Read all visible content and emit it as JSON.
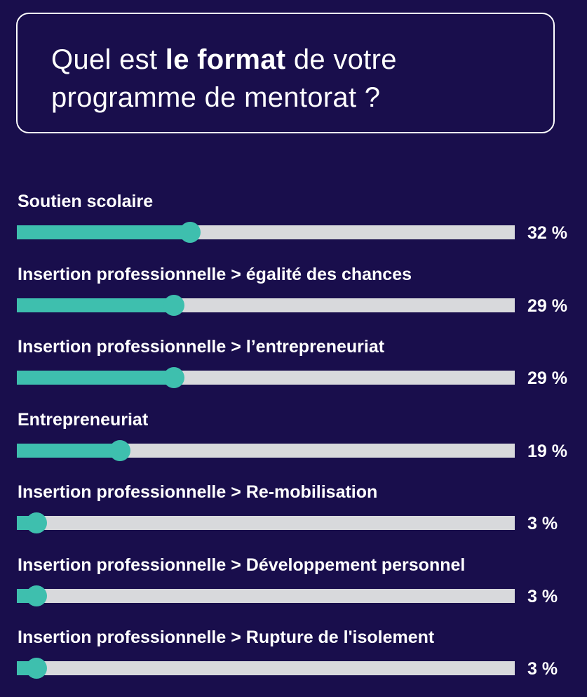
{
  "title": {
    "before": "Quel est ",
    "bold": "le format",
    "after": " de votre programme de mentorat ?"
  },
  "chart_data": {
    "type": "bar",
    "orientation": "horizontal",
    "xlim": [
      0,
      100
    ],
    "unit": "%",
    "categories": [
      "Soutien scolaire",
      "Insertion professionnelle > égalité des chances",
      "Insertion professionnelle > l’entrepreneuriat",
      "Entrepreneuriat",
      "Insertion professionnelle > Re-mobilisation",
      "Insertion professionnelle > Développement personnel",
      "Insertion professionnelle > Rupture de l'isolement"
    ],
    "values": [
      32,
      29,
      29,
      19,
      3,
      3,
      3
    ],
    "value_labels": [
      "32 %",
      "29 %",
      "29 %",
      "19 %",
      "3 %",
      "3 %",
      "3 %"
    ],
    "colors": {
      "fill": "#3ebfae",
      "track": "#d8d9dc",
      "background": "#190e4c"
    }
  }
}
